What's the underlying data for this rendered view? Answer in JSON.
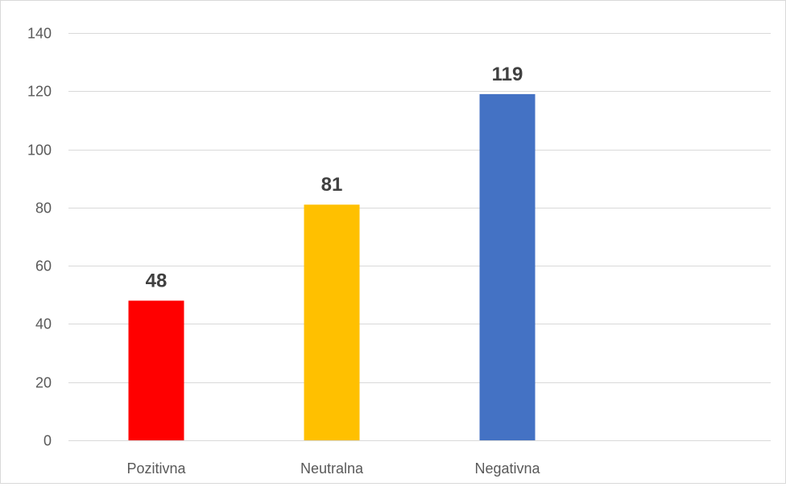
{
  "chart_data": {
    "type": "bar",
    "title": "",
    "xlabel": "",
    "ylabel": "",
    "categories": [
      "Pozitivna",
      "Neutralna",
      "Negativna"
    ],
    "values": [
      48,
      81,
      119
    ],
    "colors": [
      "#ff0000",
      "#ffc000",
      "#4472c4"
    ],
    "data_labels": [
      "48",
      "81",
      "119"
    ],
    "ylim": [
      0,
      140
    ],
    "yticks": [
      0,
      20,
      40,
      60,
      80,
      100,
      120,
      140
    ],
    "ytick_labels": [
      "0",
      "20",
      "40",
      "60",
      "80",
      "100",
      "120",
      "140"
    ],
    "grid": true,
    "legend": "none"
  }
}
